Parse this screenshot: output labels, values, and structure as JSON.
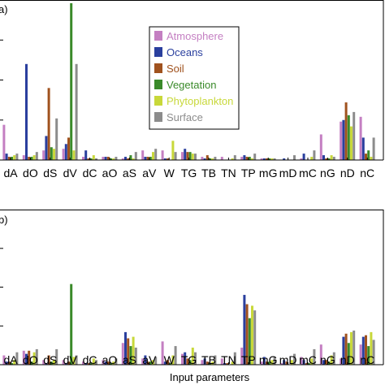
{
  "chart_data": [
    {
      "type": "bar",
      "panel_label": "a)",
      "categories": [
        "dA",
        "dO",
        "dS",
        "dV",
        "dC",
        "aO",
        "aS",
        "aV",
        "W",
        "TG",
        "TB",
        "TN",
        "TP",
        "mG",
        "mD",
        "mC",
        "nG",
        "nD",
        "nC"
      ],
      "ylim": [
        0,
        1
      ],
      "xlabel": "",
      "ylabel": "",
      "legend_position": "top-center",
      "series": [
        {
          "name": "Atmosphere",
          "color": "#c47fc2",
          "values": [
            0.22,
            0.03,
            0.06,
            0.07,
            0.02,
            0.02,
            0.01,
            0.06,
            0.06,
            0.05,
            0.02,
            0.02,
            0.02,
            0.01,
            0.0,
            0.01,
            0.16,
            0.24,
            0.27
          ]
        },
        {
          "name": "Oceans",
          "color": "#2a3f9e",
          "values": [
            0.04,
            0.6,
            0.15,
            0.1,
            0.06,
            0.02,
            0.02,
            0.02,
            0.01,
            0.07,
            0.01,
            0.0,
            0.03,
            0.01,
            0.01,
            0.04,
            0.03,
            0.25,
            0.14
          ]
        },
        {
          "name": "Soil",
          "color": "#a0521e",
          "values": [
            0.02,
            0.02,
            0.45,
            0.14,
            0.01,
            0.02,
            0.01,
            0.02,
            0.01,
            0.05,
            0.03,
            0.0,
            0.02,
            0.01,
            0.0,
            0.0,
            0.01,
            0.36,
            0.04
          ]
        },
        {
          "name": "Vegetation",
          "color": "#3a8a2a",
          "values": [
            0.02,
            0.02,
            0.08,
            0.98,
            0.01,
            0.01,
            0.03,
            0.02,
            0.0,
            0.05,
            0.01,
            0.0,
            0.02,
            0.01,
            0.0,
            0.0,
            0.01,
            0.28,
            0.06
          ]
        },
        {
          "name": "Phytoplankton",
          "color": "#c8d83a",
          "values": [
            0.03,
            0.03,
            0.07,
            0.06,
            0.03,
            0.01,
            0.01,
            0.05,
            0.12,
            0.04,
            0.01,
            0.01,
            0.01,
            0.01,
            0.0,
            0.02,
            0.03,
            0.21,
            0.02
          ]
        },
        {
          "name": "Surface",
          "color": "#8c8c8c",
          "values": [
            0.04,
            0.05,
            0.26,
            0.6,
            0.01,
            0.02,
            0.05,
            0.07,
            0.05,
            0.04,
            0.02,
            0.03,
            0.04,
            0.01,
            0.03,
            0.06,
            0.02,
            0.3,
            0.14
          ]
        }
      ]
    },
    {
      "type": "bar",
      "panel_label": "b)",
      "categories": [
        "dA",
        "dO",
        "dS",
        "dV",
        "dC",
        "aO",
        "aS",
        "aV",
        "W",
        "TG",
        "TB",
        "TN",
        "TP",
        "mG",
        "mD",
        "mC",
        "nG",
        "nD",
        "nC"
      ],
      "ylim": [
        0,
        1
      ],
      "xlabel": "Input parameters",
      "ylabel": "",
      "series": [
        {
          "name": "Atmosphere",
          "color": "#c47fc2",
          "values": [
            0.06,
            0.09,
            0.03,
            0.03,
            0.02,
            0.03,
            0.14,
            0.04,
            0.15,
            0.07,
            0.03,
            0.04,
            0.11,
            0.02,
            0.01,
            0.05,
            0.13,
            0.04,
            0.13
          ]
        },
        {
          "name": "Oceans",
          "color": "#2a3f9e",
          "values": [
            0.02,
            0.07,
            0.01,
            0.01,
            0.01,
            0.02,
            0.21,
            0.06,
            0.02,
            0.08,
            0.04,
            0.01,
            0.45,
            0.05,
            0.03,
            0.03,
            0.03,
            0.18,
            0.18
          ]
        },
        {
          "name": "Soil",
          "color": "#a0521e",
          "values": [
            0.02,
            0.09,
            0.06,
            0.02,
            0.01,
            0.02,
            0.17,
            0.02,
            0.03,
            0.04,
            0.02,
            0.01,
            0.39,
            0.02,
            0.02,
            0.01,
            0.03,
            0.2,
            0.19
          ]
        },
        {
          "name": "Vegetation",
          "color": "#3a8a2a",
          "values": [
            0.01,
            0.02,
            0.02,
            0.52,
            0.01,
            0.01,
            0.12,
            0.02,
            0.01,
            0.03,
            0.01,
            0.0,
            0.3,
            0.02,
            0.0,
            0.01,
            0.02,
            0.14,
            0.12
          ]
        },
        {
          "name": "Phytoplankton",
          "color": "#c8d83a",
          "values": [
            0.03,
            0.08,
            0.03,
            0.05,
            0.04,
            0.02,
            0.18,
            0.03,
            0.06,
            0.11,
            0.02,
            0.02,
            0.38,
            0.03,
            0.03,
            0.04,
            0.06,
            0.21,
            0.21
          ]
        },
        {
          "name": "Surface",
          "color": "#8c8c8c",
          "values": [
            0.08,
            0.1,
            0.1,
            0.06,
            0.03,
            0.04,
            0.11,
            0.05,
            0.12,
            0.08,
            0.06,
            0.08,
            0.35,
            0.05,
            0.07,
            0.1,
            0.08,
            0.22,
            0.16
          ]
        }
      ]
    }
  ]
}
